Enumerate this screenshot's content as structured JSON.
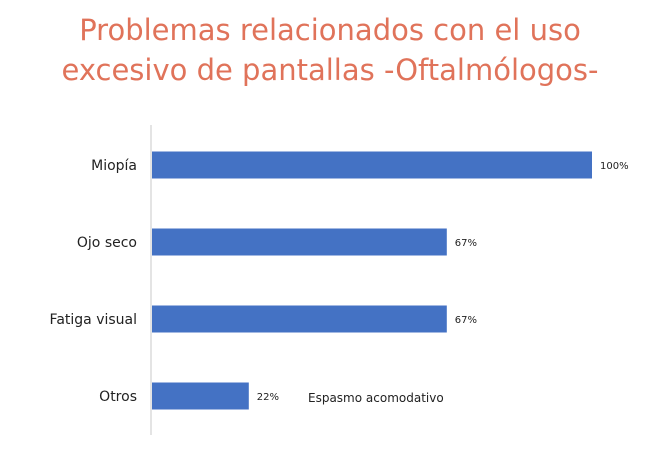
{
  "chart_data": {
    "type": "bar",
    "orientation": "horizontal",
    "title_lines": [
      "Problemas relacionados con el uso",
      "excesivo de pantallas -Oftalmólogos-"
    ],
    "categories": [
      "Miopía",
      "Ojo seco",
      "Fatiga visual",
      "Otros"
    ],
    "values": [
      100,
      67,
      67,
      22
    ],
    "value_labels": [
      "100%",
      "67%",
      "67%",
      "22%"
    ],
    "xlim": [
      0,
      100
    ],
    "annotation": "Espasmo acomodativo",
    "grid": false,
    "legend": "none",
    "bar_color": "#4472c4",
    "title_color": "#e0735a",
    "axis_color": "#c8c8c8"
  }
}
